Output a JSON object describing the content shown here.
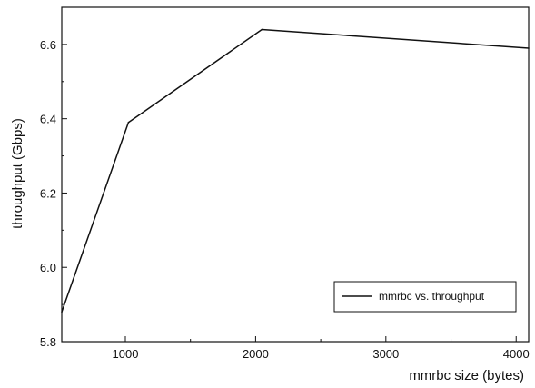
{
  "chart_data": {
    "type": "line",
    "title": "",
    "xlabel": "mmrbc size (bytes)",
    "ylabel": "throughput (Gbps)",
    "xlim": [
      512,
      4096
    ],
    "ylim": [
      5.8,
      6.7
    ],
    "x_ticks": [
      1000,
      2000,
      3000,
      4000
    ],
    "y_ticks": [
      5.8,
      6.0,
      6.2,
      6.4,
      6.6
    ],
    "x_tick_labels": [
      "1000",
      "2000",
      "3000",
      "4000"
    ],
    "y_tick_labels": [
      "5.8",
      "6.0",
      "6.2",
      "6.4",
      "6.6"
    ],
    "grid": false,
    "legend_position": "bottom-right",
    "series": [
      {
        "name": "mmrbc vs. throughput",
        "color": "#111111",
        "x": [
          512,
          1024,
          2048,
          4096
        ],
        "y": [
          5.88,
          6.39,
          6.64,
          6.59
        ]
      }
    ]
  }
}
